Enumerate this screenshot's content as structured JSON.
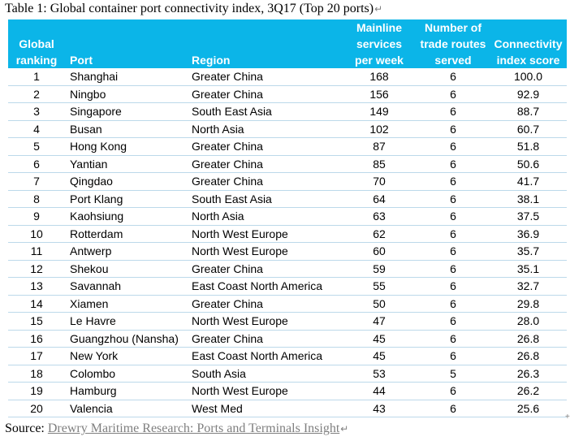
{
  "document": {
    "title": "Table 1: Global container port connectivity index, 3Q17 (Top 20 ports)",
    "paragraph_mark": "↵",
    "source_label": "Source: ",
    "source_link": "Drewry Maritime Research: Ports and Terminals Insight",
    "corner_mark": "+"
  },
  "table": {
    "headers": [
      {
        "lines": [
          "Global",
          "ranking"
        ]
      },
      {
        "lines": [
          "Port"
        ]
      },
      {
        "lines": [
          "Region"
        ]
      },
      {
        "lines": [
          "Mainline",
          "services",
          "per week"
        ]
      },
      {
        "lines": [
          "Number of",
          "trade routes",
          "served"
        ]
      },
      {
        "lines": [
          "Connectivity",
          "index score"
        ]
      }
    ],
    "rows": [
      {
        "rank": "1",
        "port": "Shanghai",
        "region": "Greater China",
        "services": "168",
        "routes": "6",
        "score": "100.0"
      },
      {
        "rank": "2",
        "port": "Ningbo",
        "region": "Greater China",
        "services": "156",
        "routes": "6",
        "score": "92.9"
      },
      {
        "rank": "3",
        "port": "Singapore",
        "region": "South East Asia",
        "services": "149",
        "routes": "6",
        "score": "88.7"
      },
      {
        "rank": "4",
        "port": "Busan",
        "region": "North Asia",
        "services": "102",
        "routes": "6",
        "score": "60.7"
      },
      {
        "rank": "5",
        "port": "Hong Kong",
        "region": "Greater China",
        "services": "87",
        "routes": "6",
        "score": "51.8"
      },
      {
        "rank": "6",
        "port": "Yantian",
        "region": "Greater China",
        "services": "85",
        "routes": "6",
        "score": "50.6"
      },
      {
        "rank": "7",
        "port": "Qingdao",
        "region": "Greater China",
        "services": "70",
        "routes": "6",
        "score": "41.7"
      },
      {
        "rank": "8",
        "port": "Port Klang",
        "region": "South East Asia",
        "services": "64",
        "routes": "6",
        "score": "38.1"
      },
      {
        "rank": "9",
        "port": "Kaohsiung",
        "region": "North Asia",
        "services": "63",
        "routes": "6",
        "score": "37.5"
      },
      {
        "rank": "10",
        "port": "Rotterdam",
        "region": "North West Europe",
        "services": "62",
        "routes": "6",
        "score": "36.9"
      },
      {
        "rank": "11",
        "port": "Antwerp",
        "region": "North West Europe",
        "services": "60",
        "routes": "6",
        "score": "35.7"
      },
      {
        "rank": "12",
        "port": "Shekou",
        "region": "Greater China",
        "services": "59",
        "routes": "6",
        "score": "35.1"
      },
      {
        "rank": "13",
        "port": "Savannah",
        "region": "East Coast North America",
        "services": "55",
        "routes": "6",
        "score": "32.7"
      },
      {
        "rank": "14",
        "port": "Xiamen",
        "region": "Greater China",
        "services": "50",
        "routes": "6",
        "score": "29.8"
      },
      {
        "rank": "15",
        "port": "Le Havre",
        "region": "North West Europe",
        "services": "47",
        "routes": "6",
        "score": "28.0"
      },
      {
        "rank": "16",
        "port": "Guangzhou (Nansha)",
        "region": "Greater China",
        "services": "45",
        "routes": "6",
        "score": "26.8"
      },
      {
        "rank": "17",
        "port": "New York",
        "region": "East Coast North America",
        "services": "45",
        "routes": "6",
        "score": "26.8"
      },
      {
        "rank": "18",
        "port": "Colombo",
        "region": "South Asia",
        "services": "53",
        "routes": "5",
        "score": "26.3"
      },
      {
        "rank": "19",
        "port": "Hamburg",
        "region": "North West Europe",
        "services": "44",
        "routes": "6",
        "score": "26.2"
      },
      {
        "rank": "20",
        "port": "Valencia",
        "region": "West Med",
        "services": "43",
        "routes": "6",
        "score": "25.6"
      }
    ]
  },
  "colors": {
    "header_background": "#0bb5e8",
    "header_text": "#ffffff",
    "row_divider": "#bcd9ea"
  }
}
